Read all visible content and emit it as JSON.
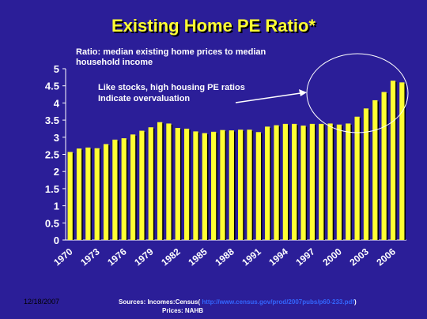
{
  "slide": {
    "title": "Existing Home PE Ratio*",
    "subtitle": "Ratio: median existing home prices to median household income",
    "annotation_line1": "Like stocks, high housing PE ratios",
    "annotation_line2": "Indicate overvaluation",
    "date": "12/18/2007",
    "sources_prefix": "Sources: Incomes:Census(",
    "sources_link": "http://www.census.gov/prod/2007pubs/p60",
    "sources_link2": "-233.pdf",
    "sources_suffix": ")",
    "prices_label": "Prices: NAHB"
  },
  "colors": {
    "background": "#2b1e98",
    "bar": "#ffff33",
    "bar_shadow": "#000000",
    "text": "#ffffff",
    "title": "#ffff33",
    "link": "#3366ff",
    "callout": "#ffffff"
  },
  "chart_data": {
    "type": "bar",
    "title": "Existing Home PE Ratio*",
    "x": [
      1970,
      1971,
      1972,
      1973,
      1974,
      1975,
      1976,
      1977,
      1978,
      1979,
      1980,
      1981,
      1982,
      1983,
      1984,
      1985,
      1986,
      1987,
      1988,
      1989,
      1990,
      1991,
      1992,
      1993,
      1994,
      1995,
      1996,
      1997,
      1998,
      1999,
      2000,
      2001,
      2002,
      2003,
      2004,
      2005,
      2006,
      2007
    ],
    "values": [
      2.57,
      2.67,
      2.7,
      2.68,
      2.8,
      2.93,
      2.97,
      3.08,
      3.19,
      3.29,
      3.44,
      3.4,
      3.27,
      3.25,
      3.17,
      3.12,
      3.16,
      3.21,
      3.2,
      3.22,
      3.22,
      3.15,
      3.31,
      3.35,
      3.39,
      3.39,
      3.34,
      3.39,
      3.39,
      3.4,
      3.37,
      3.4,
      3.6,
      3.84,
      4.08,
      4.32,
      4.65,
      4.6
    ],
    "x_tick_labels": [
      "1970",
      "1973",
      "1976",
      "1979",
      "1982",
      "1985",
      "1988",
      "1991",
      "1994",
      "1997",
      "2000",
      "2003",
      "2006"
    ],
    "y_ticks": [
      "0",
      "0.5",
      "1",
      "1.5",
      "2",
      "2.5",
      "3",
      "3.5",
      "4",
      "4.5",
      "5"
    ],
    "ylim": [
      0,
      5
    ],
    "grid": false,
    "legend": "none"
  }
}
